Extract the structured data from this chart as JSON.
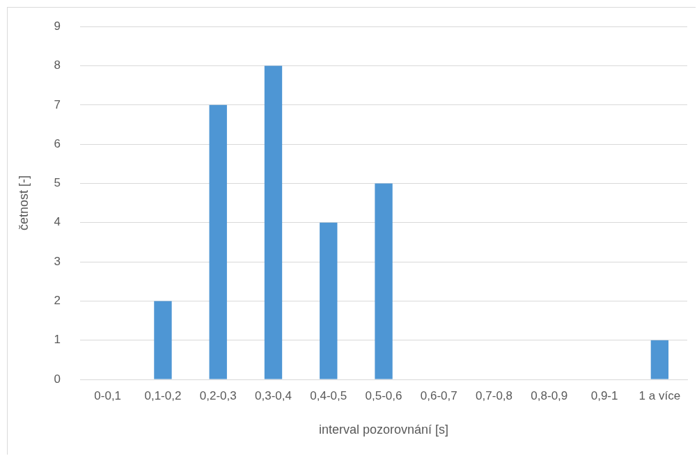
{
  "chart_data": {
    "type": "bar",
    "xlabel": "interval pozorovnání [s]",
    "ylabel": "četnost [-]",
    "categories": [
      "0-0,1",
      "0,1-0,2",
      "0,2-0,3",
      "0,3-0,4",
      "0,4-0,5",
      "0,5-0,6",
      "0,6-0,7",
      "0,7-0,8",
      "0,8-0,9",
      "0,9-1",
      "1 a více"
    ],
    "values": [
      0,
      2,
      7,
      8,
      4,
      5,
      0,
      0,
      0,
      0,
      1
    ],
    "color": "#4e96d4",
    "ylim": [
      0,
      9
    ],
    "yticks": [
      0,
      1,
      2,
      3,
      4,
      5,
      6,
      7,
      8,
      9
    ],
    "grid": "y",
    "legend": false
  }
}
